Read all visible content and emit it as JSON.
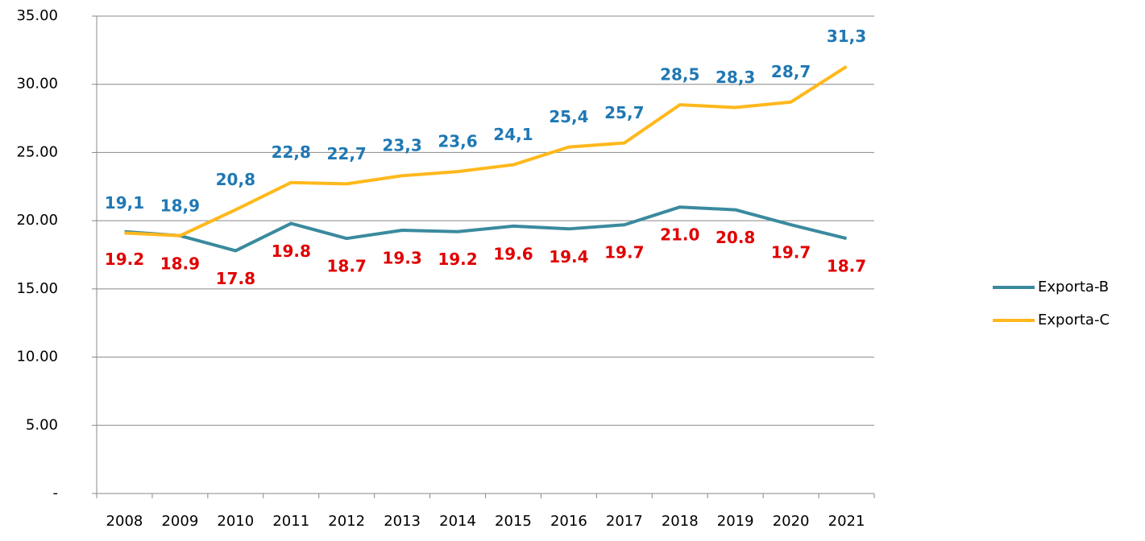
{
  "chart_data": {
    "type": "line",
    "categories": [
      "2008",
      "2009",
      "2010",
      "2011",
      "2012",
      "2013",
      "2014",
      "2015",
      "2016",
      "2017",
      "2018",
      "2019",
      "2020",
      "2021"
    ],
    "series": [
      {
        "name": "Exporta-B",
        "color": "#3a8a9e",
        "label_color": "#e00000",
        "values": [
          19.2,
          18.9,
          17.8,
          19.8,
          18.7,
          19.3,
          19.2,
          19.6,
          19.4,
          19.7,
          21.0,
          20.8,
          19.7,
          18.7
        ],
        "value_labels": [
          "19.2",
          "18.9",
          "17.8",
          "19.8",
          "18.7",
          "19.3",
          "19.2",
          "19.6",
          "19.4",
          "19.7",
          "21.0",
          "20.8",
          "19.7",
          "18.7"
        ]
      },
      {
        "name": "Exporta-C",
        "color": "#ffb81c",
        "label_color": "#1f78b4",
        "values": [
          19.1,
          18.9,
          20.8,
          22.8,
          22.7,
          23.3,
          23.6,
          24.1,
          25.4,
          25.7,
          28.5,
          28.3,
          28.7,
          31.3
        ],
        "value_labels": [
          "19,1",
          "18,9",
          "20,8",
          "22,8",
          "22,7",
          "23,3",
          "23,6",
          "24,1",
          "25,4",
          "25,7",
          "28,5",
          "28,3",
          "28,7",
          "31,3"
        ]
      }
    ],
    "ylim": [
      0,
      35
    ],
    "yticks": [
      {
        "value": 0,
        "label": "-"
      },
      {
        "value": 5,
        "label": "5.00"
      },
      {
        "value": 10,
        "label": "10.00"
      },
      {
        "value": 15,
        "label": "15.00"
      },
      {
        "value": 20,
        "label": "20.00"
      },
      {
        "value": 25,
        "label": "25.00"
      },
      {
        "value": 30,
        "label": "30.00"
      },
      {
        "value": 35,
        "label": "35.00"
      }
    ],
    "grid": true,
    "legend": "right"
  }
}
